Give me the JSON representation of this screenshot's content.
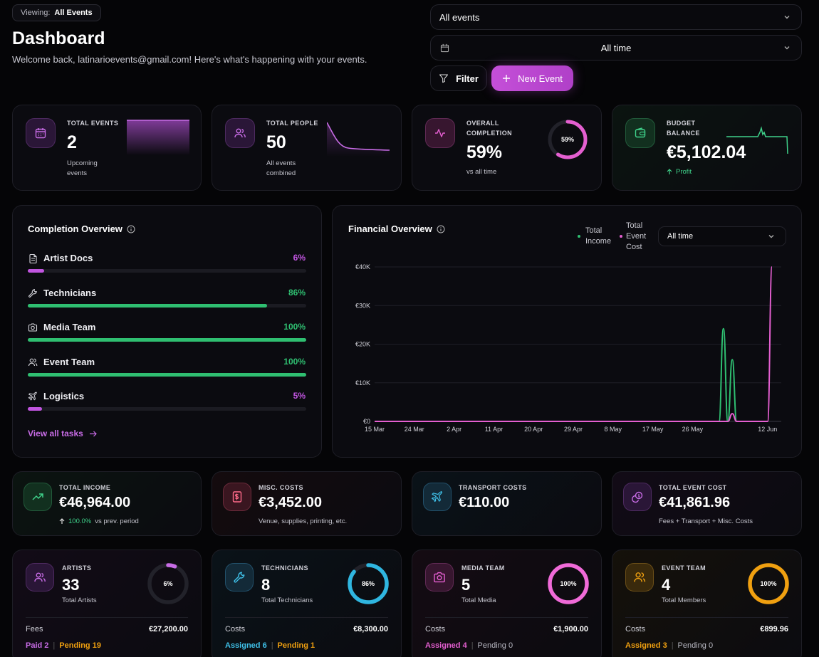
{
  "header": {
    "viewing_label": "Viewing:",
    "viewing_value": "All Events",
    "title": "Dashboard",
    "subtitle": "Welcome back, latinarioevents@gmail.com! Here's what's happening with your events.",
    "event_select": "All events",
    "time_select": "All time",
    "filter_label": "Filter",
    "new_event_label": "New Event"
  },
  "colors": {
    "purple": "#c155e0",
    "green": "#2fbf71",
    "pink": "#e45fd0",
    "blue": "#2fb6e0",
    "orange": "#f0a010"
  },
  "stats": {
    "total_events": {
      "label": "TOTAL EVENTS",
      "value": "2",
      "sub1": "Upcoming",
      "sub2": "events",
      "icon": "calendar-icon"
    },
    "total_people": {
      "label": "TOTAL PEOPLE",
      "value": "50",
      "sub1": "All events",
      "sub2": "combined",
      "icon": "users-icon"
    },
    "overall_completion": {
      "label1": "OVERALL",
      "label2": "COMPLETION",
      "value": "59%",
      "sub": "vs all time",
      "ring_text": "59%",
      "ring_pct": 59,
      "icon": "activity-icon"
    },
    "budget_balance": {
      "label1": "BUDGET",
      "label2": "BALANCE",
      "value": "€5,102.04",
      "sub": "Profit",
      "icon": "wallet-icon"
    }
  },
  "completion": {
    "title": "Completion Overview",
    "items": [
      {
        "label": "Artist Docs",
        "pct_text": "6%",
        "pct": 6,
        "color": "#c155e0",
        "icon": "document-icon"
      },
      {
        "label": "Technicians",
        "pct_text": "86%",
        "pct": 86,
        "color": "#2fbf71",
        "icon": "wrench-icon"
      },
      {
        "label": "Media Team",
        "pct_text": "100%",
        "pct": 100,
        "color": "#2fbf71",
        "icon": "camera-icon"
      },
      {
        "label": "Event Team",
        "pct_text": "100%",
        "pct": 100,
        "color": "#2fbf71",
        "icon": "user-group-icon"
      },
      {
        "label": "Logistics",
        "pct_text": "5%",
        "pct": 5,
        "color": "#c155e0",
        "icon": "plane-icon"
      }
    ],
    "view_all": "View all tasks"
  },
  "financial": {
    "title": "Financial Overview",
    "legend_income_1": "Total",
    "legend_income_2": "Income",
    "legend_cost_1": "Total",
    "legend_cost_2": "Event",
    "legend_cost_3": "Cost",
    "range_select": "All time"
  },
  "chart_data": {
    "type": "line",
    "title": "Financial Overview",
    "x_ticks": [
      "15 Mar",
      "24 Mar",
      "2 Apr",
      "11 Apr",
      "20 Apr",
      "29 Apr",
      "8 May",
      "17 May",
      "26 May",
      "12 Jun"
    ],
    "y_ticks": [
      "€0",
      "€10K",
      "€20K",
      "€30K",
      "€40K"
    ],
    "ylim": [
      0,
      40000
    ],
    "grid": true,
    "legend": "top-right",
    "series": [
      {
        "name": "Total Income",
        "color": "#2fbf71",
        "points": [
          [
            "15 Mar",
            0
          ],
          [
            "1 Jun",
            0
          ],
          [
            "2 Jun",
            24000
          ],
          [
            "3 Jun",
            0
          ],
          [
            "4 Jun",
            16000
          ],
          [
            "5 Jun",
            0
          ],
          [
            "12 Jun",
            0
          ]
        ]
      },
      {
        "name": "Total Event Cost",
        "color": "#e45fd0",
        "points": [
          [
            "15 Mar",
            0
          ],
          [
            "3 Jun",
            0
          ],
          [
            "4 Jun",
            2000
          ],
          [
            "5 Jun",
            0
          ],
          [
            "12 Jun",
            0
          ],
          [
            "13 Jun",
            40000
          ]
        ]
      }
    ]
  },
  "costs": {
    "total_income": {
      "label": "TOTAL INCOME",
      "value": "€46,964.00",
      "delta": "100.0%",
      "delta_suffix": "vs prev. period",
      "icon": "trend-up-icon"
    },
    "misc_costs": {
      "label": "MISC. COSTS",
      "value": "€3,452.00",
      "sub": "Venue, supplies, printing, etc.",
      "icon": "receipt-icon"
    },
    "transport_costs": {
      "label": "TRANSPORT COSTS",
      "value": "€110.00",
      "icon": "plane-icon"
    },
    "total_event_cost": {
      "label": "TOTAL EVENT COST",
      "value": "€41,861.96",
      "sub": "Fees + Transport + Misc. Costs",
      "icon": "coins-icon"
    }
  },
  "teams": {
    "artists": {
      "label": "ARTISTS",
      "value": "33",
      "sub": "Total Artists",
      "ring_text": "6%",
      "ring_pct": 6,
      "foot_label": "Fees",
      "foot_value": "€27,200.00",
      "tag1": "Paid 2",
      "tag2": "Pending 19",
      "icon": "users-icon"
    },
    "technicians": {
      "label": "TECHNICIANS",
      "value": "8",
      "sub": "Total Technicians",
      "ring_text": "86%",
      "ring_pct": 86,
      "foot_label": "Costs",
      "foot_value": "€8,300.00",
      "tag1": "Assigned 6",
      "tag2": "Pending 1",
      "icon": "wrench-icon"
    },
    "media": {
      "label": "MEDIA TEAM",
      "value": "5",
      "sub": "Total Media",
      "ring_text": "100%",
      "ring_pct": 100,
      "foot_label": "Costs",
      "foot_value": "€1,900.00",
      "tag1": "Assigned 4",
      "tag2": "Pending 0",
      "icon": "camera-icon"
    },
    "event_team": {
      "label": "EVENT TEAM",
      "value": "4",
      "sub": "Total Members",
      "ring_text": "100%",
      "ring_pct": 100,
      "foot_label": "Costs",
      "foot_value": "€899.96",
      "tag1": "Assigned 3",
      "tag2": "Pending 0",
      "icon": "user-group-icon"
    }
  }
}
